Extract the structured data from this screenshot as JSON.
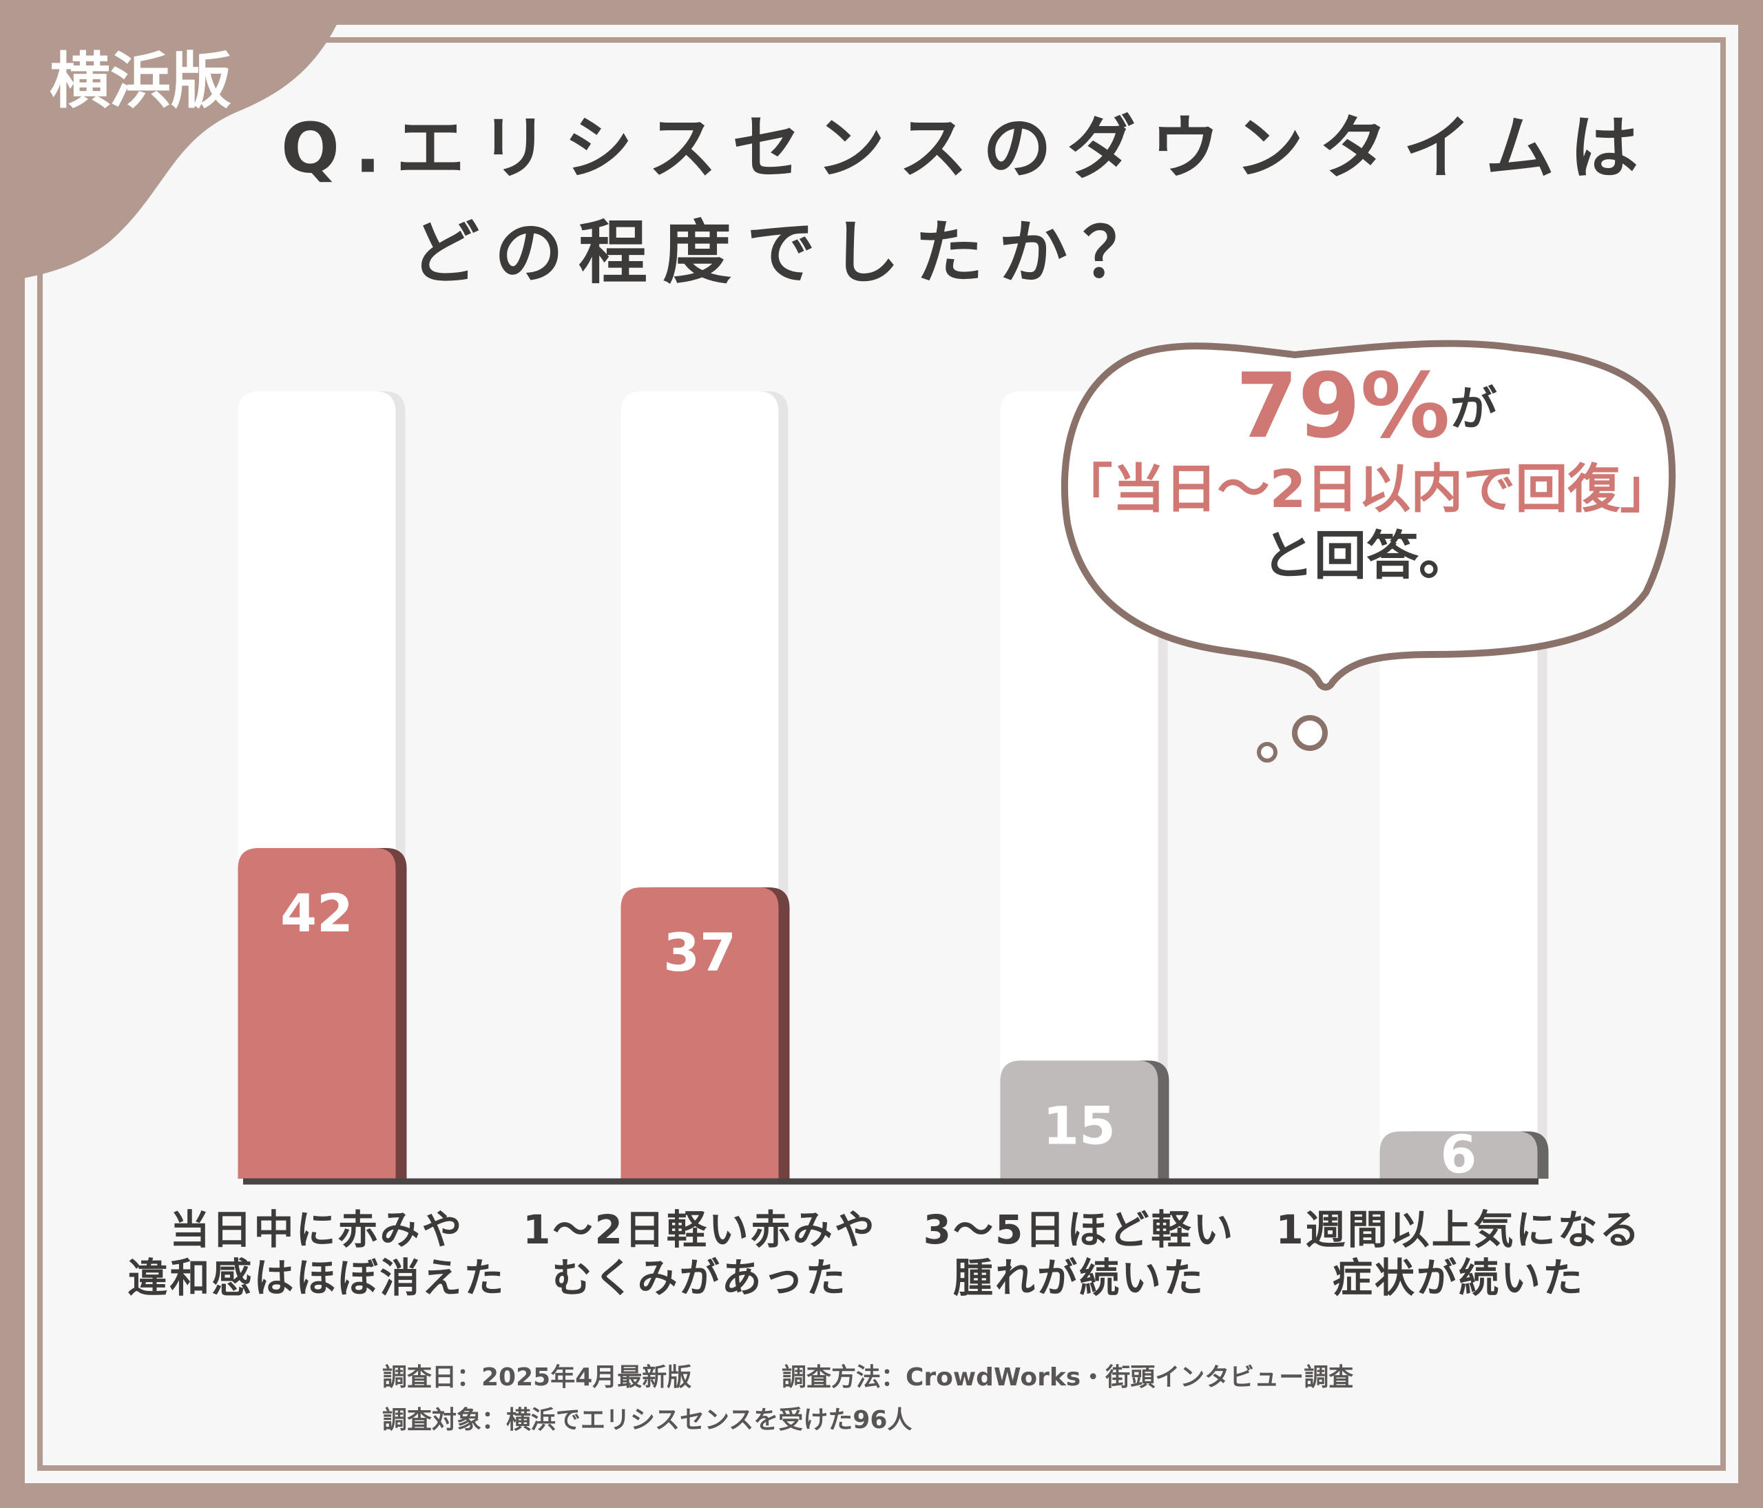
{
  "badge": "横浜版",
  "chart_data": {
    "type": "bar",
    "title": "Q.エリシスセンスのダウンタイムは",
    "subtitle": "どの程度でしたか？",
    "categories": [
      "当日中に赤みや\n違和感はほぼ消えた",
      "1〜2日軽い赤みや\nむくみがあった",
      "3〜5日ほど軽い\n腫れが続いた",
      "1週間以上気になる\n症状が続いた"
    ],
    "values": [
      42,
      37,
      15,
      6
    ],
    "colors": [
      "#cf7874",
      "#cf7874",
      "#bfbbba",
      "#bfbbba"
    ],
    "ylim": [
      0,
      100
    ],
    "callout": {
      "highlight": "79%",
      "highlight_suffix": "が",
      "line2": "「当日〜2日以内で回復」",
      "line3": "と回答。"
    }
  },
  "footer": {
    "date": "調査日：2025年4月最新版",
    "method": "調査方法：CrowdWorks・街頭インタビュー調査",
    "target": "調査対象：横浜でエリシスセンスを受けた96人"
  }
}
